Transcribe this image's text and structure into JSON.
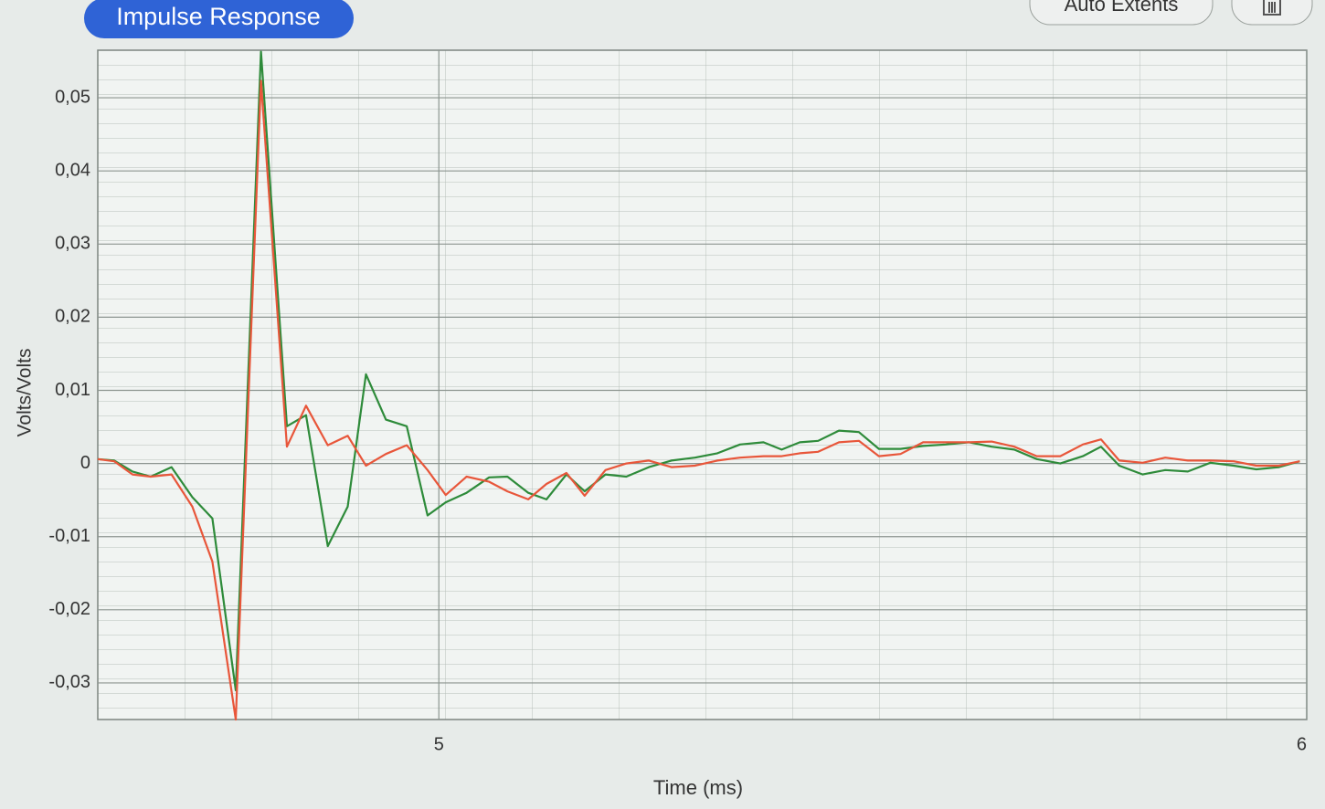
{
  "toolbar": {
    "tab": "Impulse Response",
    "auto_extents": "Auto Extents"
  },
  "chart_data": {
    "type": "line",
    "x_label": "Time (ms)",
    "y_label": "Volts/Volts",
    "x": [
      4.607,
      4.626,
      4.647,
      4.668,
      4.692,
      4.716,
      4.739,
      4.766,
      4.795,
      4.825,
      4.847,
      4.872,
      4.895,
      4.916,
      4.939,
      4.963,
      4.987,
      5.008,
      5.032,
      5.058,
      5.079,
      5.103,
      5.124,
      5.147,
      5.168,
      5.192,
      5.216,
      5.242,
      5.268,
      5.295,
      5.321,
      5.347,
      5.374,
      5.395,
      5.416,
      5.437,
      5.461,
      5.484,
      5.507,
      5.532,
      5.558,
      5.584,
      5.611,
      5.637,
      5.663,
      5.689,
      5.716,
      5.742,
      5.763,
      5.784,
      5.811,
      5.837,
      5.863,
      5.889,
      5.916,
      5.942,
      5.968,
      5.992
    ],
    "series": [
      {
        "color": "#2e8b3a",
        "values": [
          0.0006,
          0.0004,
          -0.0011,
          -0.0018,
          -0.0005,
          -0.0046,
          -0.0075,
          -0.031,
          0.0563,
          0.0051,
          0.0066,
          -0.0113,
          -0.0059,
          0.0122,
          0.006,
          0.0051,
          -0.0071,
          -0.0053,
          -0.004,
          -0.0019,
          -0.0018,
          -0.004,
          -0.0049,
          -0.0015,
          -0.0038,
          -0.0015,
          -0.0018,
          -0.0005,
          0.0004,
          0.0008,
          0.0014,
          0.0026,
          0.0029,
          0.0019,
          0.0029,
          0.0031,
          0.0045,
          0.0043,
          0.002,
          0.002,
          0.0024,
          0.0026,
          0.0029,
          0.0023,
          0.0019,
          0.0006,
          0,
          0.001,
          0.0023,
          -0.0003,
          -0.0015,
          -0.0009,
          -0.0011,
          0.0001,
          -0.0003,
          -0.0008,
          -0.0005,
          0.0003
        ]
      },
      {
        "color": "#e8563a",
        "values": [
          0.0006,
          0.0003,
          -0.0015,
          -0.0018,
          -0.0015,
          -0.0059,
          -0.0134,
          -0.035,
          0.0523,
          0.0023,
          0.0079,
          0.0025,
          0.0038,
          -0.0003,
          0.0013,
          0.0025,
          -0.0009,
          -0.0043,
          -0.0018,
          -0.0025,
          -0.0038,
          -0.0049,
          -0.0028,
          -0.0013,
          -0.0044,
          -0.0009,
          0,
          0.0004,
          -0.0005,
          -0.0003,
          0.0004,
          0.0008,
          0.001,
          0.001,
          0.0014,
          0.0016,
          0.0029,
          0.0031,
          0.001,
          0.0013,
          0.0029,
          0.0029,
          0.0029,
          0.003,
          0.0023,
          0.001,
          0.001,
          0.0026,
          0.0033,
          0.0004,
          0.0001,
          0.0008,
          0.0004,
          0.0004,
          0.0003,
          -0.0003,
          -0.0003,
          0.0003
        ]
      }
    ],
    "xlim": [
      4.607,
      6
    ],
    "xticks": [
      5,
      6
    ],
    "ylim": [
      -0.035,
      0.0565
    ],
    "yticks": [
      {
        "value": -0.03,
        "label": "-0,03"
      },
      {
        "value": -0.02,
        "label": "-0,02"
      },
      {
        "value": -0.01,
        "label": "-0,01"
      },
      0,
      {
        "value": 0.01,
        "label": "0,01"
      },
      {
        "value": 0.02,
        "label": "0,02"
      },
      {
        "value": 0.03,
        "label": "0,03"
      },
      {
        "value": 0.04,
        "label": "0,04"
      },
      {
        "value": 0.05,
        "label": "0,05"
      }
    ],
    "grid": true
  }
}
